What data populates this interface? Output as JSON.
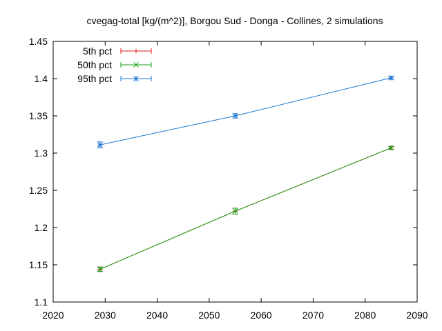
{
  "chart_data": {
    "type": "line",
    "title": "cvegag-total [kg/(m^2)], Borgou Sud - Donga - Collines, 2 simulations",
    "xlabel": "",
    "ylabel": "",
    "xlim": [
      2020,
      2090
    ],
    "ylim": [
      1.1,
      1.45
    ],
    "x_ticks": [
      "2020",
      "2030",
      "2040",
      "2050",
      "2060",
      "2070",
      "2080",
      "2090"
    ],
    "y_ticks": [
      "1.1",
      "1.15",
      "1.2",
      "1.25",
      "1.3",
      "1.35",
      "1.4",
      "1.45"
    ],
    "x": [
      2029,
      2055,
      2085
    ],
    "legend_position": "top-left",
    "grid": false,
    "series": [
      {
        "name": "5th pct",
        "color": "#e41a1c",
        "marker": "plus",
        "values": [
          1.144,
          1.222,
          1.307
        ],
        "errors": [
          0.003,
          0.004,
          0.002
        ]
      },
      {
        "name": "50th pct",
        "color": "#1ba11b",
        "marker": "cross",
        "values": [
          1.144,
          1.222,
          1.307
        ],
        "errors": [
          0.003,
          0.004,
          0.002
        ]
      },
      {
        "name": "95th pct",
        "color": "#1a76d2",
        "marker": "star",
        "values": [
          1.311,
          1.35,
          1.401
        ],
        "errors": [
          0.004,
          0.003,
          0.002
        ]
      }
    ]
  }
}
